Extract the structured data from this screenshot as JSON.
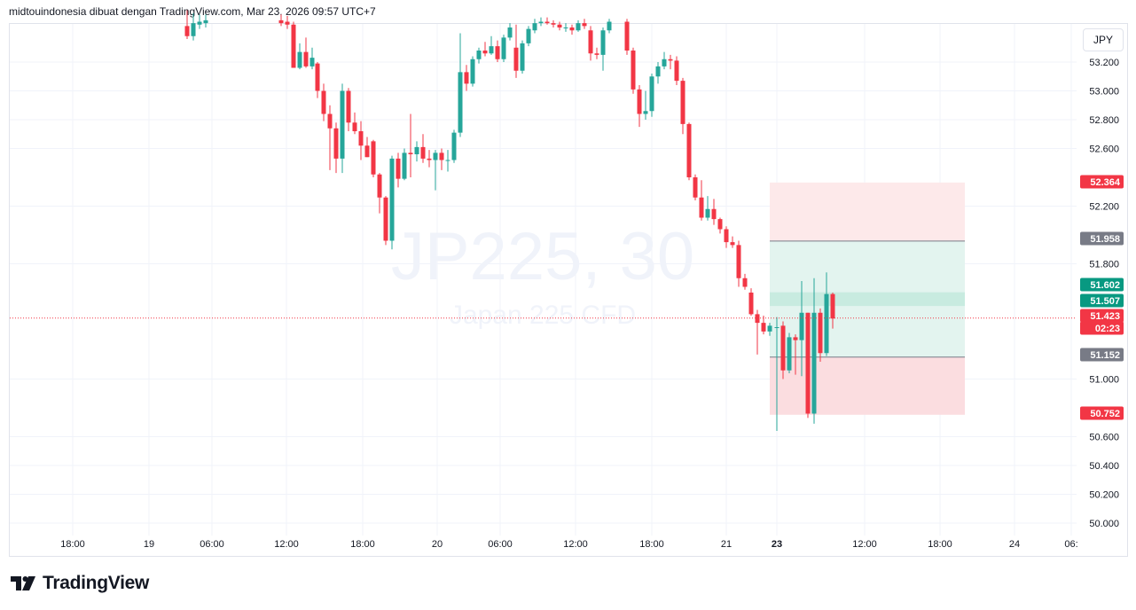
{
  "header": {
    "attribution": "midtouindonesia dibuat dengan TradingView.com, Mar 23, 2026 09:57 UTC+7"
  },
  "currency_button": "JPY",
  "logo": {
    "text": "TradingView"
  },
  "watermark": {
    "symbol": "JP225, 30",
    "description": "Japan 225 CFD"
  },
  "colors": {
    "up": "#26a69a",
    "down": "#f23645",
    "grid": "#f0f3fa",
    "profit_zone": "#e3f4ef",
    "loss_zone": "#fbdde0",
    "target_zone": "#fde9ea",
    "entry_zone": "#c8ebe0",
    "price_line": "#f23645",
    "level_line": "#787b86"
  },
  "chart_data": {
    "type": "candlestick",
    "symbol": "JP225",
    "timeframe": "30",
    "currency": "JPY",
    "y_ticks": [
      "53.200",
      "53.000",
      "52.800",
      "52.600",
      "52.200",
      "51.800",
      "51.000",
      "50.600",
      "50.400",
      "50.200",
      "50.000"
    ],
    "x_ticks": [
      "18:00",
      "19",
      "06:00",
      "12:00",
      "18:00",
      "20",
      "06:00",
      "12:00",
      "18:00",
      "21",
      "23",
      "12:00",
      "18:00",
      "24",
      "06:"
    ],
    "price_labels": [
      {
        "value": "52.364",
        "color": "#f23645"
      },
      {
        "value": "51.958",
        "color": "#787b86"
      },
      {
        "value": "51.602",
        "color": "#089981"
      },
      {
        "value": "51.507",
        "color": "#089981"
      },
      {
        "value": "51.423",
        "color": "#f23645"
      },
      {
        "value": "02:23",
        "color": "#f23645"
      },
      {
        "value": "51.152",
        "color": "#787b86"
      },
      {
        "value": "50.752",
        "color": "#f23645"
      }
    ],
    "current_price": 51.423,
    "position_tool": {
      "stop": 52.364,
      "target1": 51.958,
      "entry_high": 51.602,
      "entry_low": 51.507,
      "level": 51.152,
      "target2": 50.752
    },
    "candles": [
      {
        "x": 211,
        "o": 53.45,
        "c": 53.38,
        "h": 53.56,
        "l": 53.36
      },
      {
        "x": 218,
        "o": 53.38,
        "c": 53.47,
        "h": 53.54,
        "l": 53.35
      },
      {
        "x": 225,
        "o": 53.46,
        "c": 53.48,
        "h": 53.53,
        "l": 53.43
      },
      {
        "x": 232,
        "o": 53.47,
        "c": 53.49,
        "h": 53.53,
        "l": 53.44
      },
      {
        "x": 317,
        "o": 53.49,
        "c": 53.47,
        "h": 53.53,
        "l": 53.45
      },
      {
        "x": 324,
        "o": 53.48,
        "c": 53.46,
        "h": 53.52,
        "l": 53.43
      },
      {
        "x": 331,
        "o": 53.46,
        "c": 53.16,
        "h": 53.48,
        "l": 53.16
      },
      {
        "x": 338,
        "o": 53.16,
        "c": 53.27,
        "h": 53.33,
        "l": 53.15
      },
      {
        "x": 345,
        "o": 53.27,
        "c": 53.17,
        "h": 53.37,
        "l": 53.16
      },
      {
        "x": 352,
        "o": 53.17,
        "c": 53.23,
        "h": 53.3,
        "l": 53.15
      },
      {
        "x": 358,
        "o": 53.19,
        "c": 53.0,
        "h": 53.2,
        "l": 52.95
      },
      {
        "x": 365,
        "o": 53.0,
        "c": 52.84,
        "h": 53.05,
        "l": 52.79
      },
      {
        "x": 372,
        "o": 52.84,
        "c": 52.74,
        "h": 52.9,
        "l": 52.45
      },
      {
        "x": 379,
        "o": 52.74,
        "c": 52.53,
        "h": 52.78,
        "l": 52.43
      },
      {
        "x": 386,
        "o": 52.53,
        "c": 53.0,
        "h": 53.05,
        "l": 52.43
      },
      {
        "x": 393,
        "o": 53.0,
        "c": 52.78,
        "h": 53.02,
        "l": 52.72
      },
      {
        "x": 400,
        "o": 52.78,
        "c": 52.72,
        "h": 52.85,
        "l": 52.7
      },
      {
        "x": 407,
        "o": 52.72,
        "c": 52.62,
        "h": 52.79,
        "l": 52.52
      },
      {
        "x": 414,
        "o": 52.62,
        "c": 52.54,
        "h": 52.68,
        "l": 52.54
      },
      {
        "x": 421,
        "o": 52.65,
        "c": 52.42,
        "h": 52.66,
        "l": 52.4
      },
      {
        "x": 428,
        "o": 52.42,
        "c": 52.26,
        "h": 52.43,
        "l": 52.15
      },
      {
        "x": 435,
        "o": 52.26,
        "c": 51.96,
        "h": 52.27,
        "l": 51.93
      },
      {
        "x": 442,
        "o": 51.96,
        "c": 52.53,
        "h": 52.55,
        "l": 51.9
      },
      {
        "x": 449,
        "o": 52.53,
        "c": 52.39,
        "h": 52.57,
        "l": 52.33
      },
      {
        "x": 456,
        "o": 52.39,
        "c": 52.57,
        "h": 52.6,
        "l": 52.38
      },
      {
        "x": 463,
        "o": 52.57,
        "c": 52.56,
        "h": 52.84,
        "l": 52.4
      },
      {
        "x": 470,
        "o": 52.56,
        "c": 52.61,
        "h": 52.65,
        "l": 52.51
      },
      {
        "x": 477,
        "o": 52.61,
        "c": 52.53,
        "h": 52.7,
        "l": 52.5
      },
      {
        "x": 484,
        "o": 52.53,
        "c": 52.52,
        "h": 52.59,
        "l": 52.47
      },
      {
        "x": 491,
        "o": 52.52,
        "c": 52.57,
        "h": 52.59,
        "l": 52.31
      },
      {
        "x": 498,
        "o": 52.57,
        "c": 52.52,
        "h": 52.6,
        "l": 52.45
      },
      {
        "x": 505,
        "o": 52.52,
        "c": 52.52,
        "h": 52.59,
        "l": 52.44
      },
      {
        "x": 512,
        "o": 52.52,
        "c": 52.71,
        "h": 52.73,
        "l": 52.5
      },
      {
        "x": 519,
        "o": 52.71,
        "c": 53.13,
        "h": 53.4,
        "l": 52.68
      },
      {
        "x": 526,
        "o": 53.13,
        "c": 53.05,
        "h": 53.18,
        "l": 53.0
      },
      {
        "x": 533,
        "o": 53.05,
        "c": 53.22,
        "h": 53.24,
        "l": 53.03
      },
      {
        "x": 540,
        "o": 53.22,
        "c": 53.28,
        "h": 53.3,
        "l": 53.19
      },
      {
        "x": 547,
        "o": 53.28,
        "c": 53.26,
        "h": 53.34,
        "l": 53.24
      },
      {
        "x": 554,
        "o": 53.26,
        "c": 53.31,
        "h": 53.38,
        "l": 53.25
      },
      {
        "x": 561,
        "o": 53.31,
        "c": 53.22,
        "h": 53.35,
        "l": 53.2
      },
      {
        "x": 568,
        "o": 53.22,
        "c": 53.37,
        "h": 53.39,
        "l": 53.2
      },
      {
        "x": 575,
        "o": 53.37,
        "c": 53.44,
        "h": 53.47,
        "l": 53.35
      },
      {
        "x": 582,
        "o": 53.3,
        "c": 53.14,
        "h": 53.46,
        "l": 53.09
      },
      {
        "x": 589,
        "o": 53.14,
        "c": 53.33,
        "h": 53.35,
        "l": 53.12
      },
      {
        "x": 596,
        "o": 53.33,
        "c": 53.43,
        "h": 53.45,
        "l": 53.31
      },
      {
        "x": 603,
        "o": 53.42,
        "c": 53.47,
        "h": 53.5,
        "l": 53.4
      },
      {
        "x": 610,
        "o": 53.47,
        "c": 53.48,
        "h": 53.51,
        "l": 53.45
      },
      {
        "x": 617,
        "o": 53.48,
        "c": 53.47,
        "h": 53.51,
        "l": 53.46
      },
      {
        "x": 624,
        "o": 53.47,
        "c": 53.46,
        "h": 53.49,
        "l": 53.44
      },
      {
        "x": 631,
        "o": 53.46,
        "c": 53.44,
        "h": 53.48,
        "l": 53.42
      },
      {
        "x": 638,
        "o": 53.44,
        "c": 53.44,
        "h": 53.47,
        "l": 53.41
      },
      {
        "x": 645,
        "o": 53.44,
        "c": 53.42,
        "h": 53.46,
        "l": 53.39
      },
      {
        "x": 652,
        "o": 53.42,
        "c": 53.47,
        "h": 53.49,
        "l": 53.41
      },
      {
        "x": 659,
        "o": 53.47,
        "c": 53.45,
        "h": 53.5,
        "l": 53.43
      },
      {
        "x": 666,
        "o": 53.42,
        "c": 53.26,
        "h": 53.45,
        "l": 53.21
      },
      {
        "x": 673,
        "o": 53.26,
        "c": 53.25,
        "h": 53.3,
        "l": 53.22
      },
      {
        "x": 680,
        "o": 53.25,
        "c": 53.42,
        "h": 53.44,
        "l": 53.14
      },
      {
        "x": 687,
        "o": 53.42,
        "c": 53.48,
        "h": 53.5,
        "l": 53.4
      },
      {
        "x": 707,
        "o": 53.48,
        "c": 53.28,
        "h": 53.5,
        "l": 53.25
      },
      {
        "x": 714,
        "o": 53.28,
        "c": 53.01,
        "h": 53.3,
        "l": 52.98
      },
      {
        "x": 721,
        "o": 53.01,
        "c": 52.84,
        "h": 53.04,
        "l": 52.75
      },
      {
        "x": 728,
        "o": 52.84,
        "c": 52.86,
        "h": 53.0,
        "l": 52.8
      },
      {
        "x": 735,
        "o": 52.86,
        "c": 53.1,
        "h": 53.12,
        "l": 52.82
      },
      {
        "x": 742,
        "o": 53.1,
        "c": 53.17,
        "h": 53.2,
        "l": 53.05
      },
      {
        "x": 749,
        "o": 53.17,
        "c": 53.22,
        "h": 53.27,
        "l": 53.15
      },
      {
        "x": 756,
        "o": 53.22,
        "c": 53.21,
        "h": 53.25,
        "l": 53.15
      },
      {
        "x": 763,
        "o": 53.21,
        "c": 53.07,
        "h": 53.24,
        "l": 53.04
      },
      {
        "x": 770,
        "o": 53.07,
        "c": 52.77,
        "h": 53.09,
        "l": 52.7
      },
      {
        "x": 777,
        "o": 52.77,
        "c": 52.4,
        "h": 52.78,
        "l": 52.38
      },
      {
        "x": 784,
        "o": 52.4,
        "c": 52.26,
        "h": 52.42,
        "l": 52.24
      },
      {
        "x": 791,
        "o": 52.26,
        "c": 52.12,
        "h": 52.38,
        "l": 52.1
      },
      {
        "x": 798,
        "o": 52.12,
        "c": 52.18,
        "h": 52.27,
        "l": 52.1
      },
      {
        "x": 805,
        "o": 52.18,
        "c": 52.11,
        "h": 52.25,
        "l": 52.07
      },
      {
        "x": 812,
        "o": 52.11,
        "c": 52.04,
        "h": 52.12,
        "l": 52.01
      },
      {
        "x": 819,
        "o": 52.04,
        "c": 51.95,
        "h": 52.06,
        "l": 51.91
      },
      {
        "x": 826,
        "o": 51.95,
        "c": 51.93,
        "h": 51.99,
        "l": 51.91
      },
      {
        "x": 833,
        "o": 51.93,
        "c": 51.7,
        "h": 51.96,
        "l": 51.64
      },
      {
        "x": 840,
        "o": 51.7,
        "c": 51.64,
        "h": 51.73,
        "l": 51.62
      },
      {
        "x": 847,
        "o": 51.6,
        "c": 51.45,
        "h": 51.63,
        "l": 51.44
      },
      {
        "x": 854,
        "o": 51.45,
        "c": 51.39,
        "h": 51.48,
        "l": 51.17
      },
      {
        "x": 861,
        "o": 51.39,
        "c": 51.33,
        "h": 51.44,
        "l": 51.31
      },
      {
        "x": 868,
        "o": 51.33,
        "c": 51.37,
        "h": 51.39,
        "l": 51.3
      },
      {
        "x": 876,
        "o": 51.36,
        "c": 51.36,
        "h": 51.43,
        "l": 50.64
      },
      {
        "x": 883,
        "o": 51.37,
        "c": 51.06,
        "h": 51.4,
        "l": 51.0
      },
      {
        "x": 890,
        "o": 51.06,
        "c": 51.29,
        "h": 51.32,
        "l": 51.04
      },
      {
        "x": 897,
        "o": 51.29,
        "c": 51.27,
        "h": 51.31,
        "l": 51.03
      },
      {
        "x": 904,
        "o": 51.27,
        "c": 51.46,
        "h": 51.68,
        "l": 51.02
      },
      {
        "x": 911,
        "o": 51.46,
        "c": 50.76,
        "h": 51.46,
        "l": 50.73
      },
      {
        "x": 918,
        "o": 50.76,
        "c": 51.46,
        "h": 51.7,
        "l": 50.69
      },
      {
        "x": 925,
        "o": 51.46,
        "c": 51.18,
        "h": 51.49,
        "l": 51.12
      },
      {
        "x": 932,
        "o": 51.18,
        "c": 51.59,
        "h": 51.74,
        "l": 51.16
      },
      {
        "x": 939,
        "o": 51.59,
        "c": 51.42,
        "h": 51.6,
        "l": 51.35
      }
    ]
  }
}
